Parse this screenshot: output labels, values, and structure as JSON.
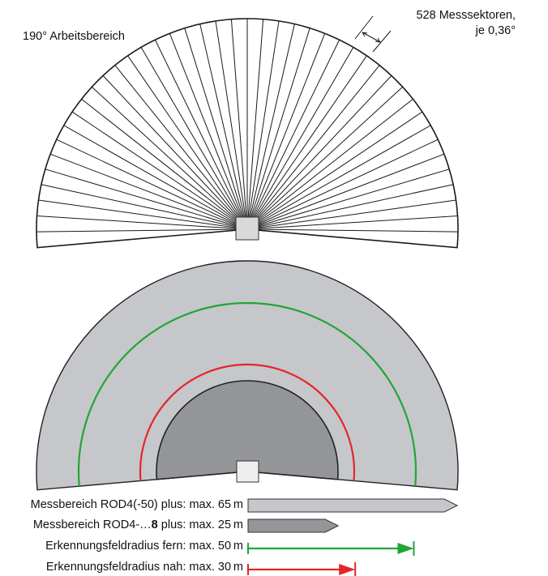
{
  "top_diagram": {
    "working_range_label": "190° Arbeitsbereich",
    "sectors_label_line1": "528 Messsektoren,",
    "sectors_label_line2": "je 0,36°",
    "working_range_deg": 190,
    "sector_count": 528,
    "sector_angle_deg": 0.36,
    "line_color": "#1a1a1a",
    "sensor_color": "#d9d9d9"
  },
  "bottom_diagram": {
    "colors": {
      "range_plus": "#c6c7ca",
      "range_8": "#939598",
      "field_far": "#1fa637",
      "field_near": "#e3262a",
      "sensor": "#eeeeee"
    },
    "legend": [
      {
        "label": "Messbereich ROD4(-50) plus: max. 65 m",
        "kind": "arrow",
        "value_m": 65,
        "color": "#c6c7ca"
      },
      {
        "label_prefix": "Messbereich ROD4-…",
        "label_bold": "8",
        "label_suffix": " plus: max. 25 m",
        "kind": "arrow",
        "value_m": 25,
        "color": "#939598"
      },
      {
        "label": "Erkennungsfeldradius fern: max. 50 m",
        "kind": "line",
        "value_m": 50,
        "color": "#1fa637"
      },
      {
        "label": "Erkennungsfeldradius nah: max. 30 m",
        "kind": "line",
        "value_m": 30,
        "color": "#e3262a"
      }
    ]
  }
}
